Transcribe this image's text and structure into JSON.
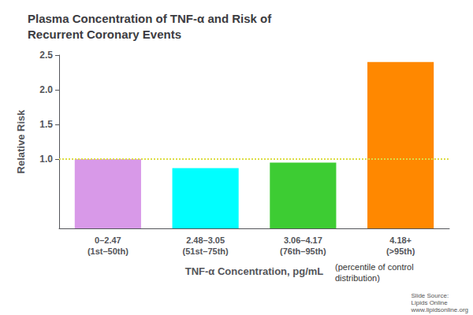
{
  "chart_data": {
    "type": "bar",
    "title": "Plasma Concentration of TNF-α and Risk of\nRecurrent Coronary Events",
    "xlabel": "TNF-α Concentration, pg/mL",
    "ylabel": "Relative Risk",
    "categories": [
      "0–2.47\n(1st–50th)",
      "2.48–3.05\n(51st–75th)",
      "3.06–4.17\n(76th–95th)",
      "4.18+\n(>95th)"
    ],
    "values": [
      1.0,
      0.87,
      0.95,
      2.4
    ],
    "colors": [
      "#d899e8",
      "#00ffff",
      "#3dcc33",
      "#ff8800"
    ],
    "ylim": [
      0,
      2.5
    ],
    "yticks": [
      {
        "value": 1.0,
        "label": "1.0"
      },
      {
        "value": 1.5,
        "label": "1.5"
      },
      {
        "value": 2.0,
        "label": "2.0"
      },
      {
        "value": 2.5,
        "label": "2.5"
      }
    ],
    "grid": false,
    "reference_line": {
      "value": 1.0,
      "color": "#dddd44",
      "line_style": "dotted"
    },
    "annotations": [
      "(percentile of control\ndistribution)",
      "Slide Source:\nLipids Online\nwww.lipidsonline.org"
    ]
  }
}
